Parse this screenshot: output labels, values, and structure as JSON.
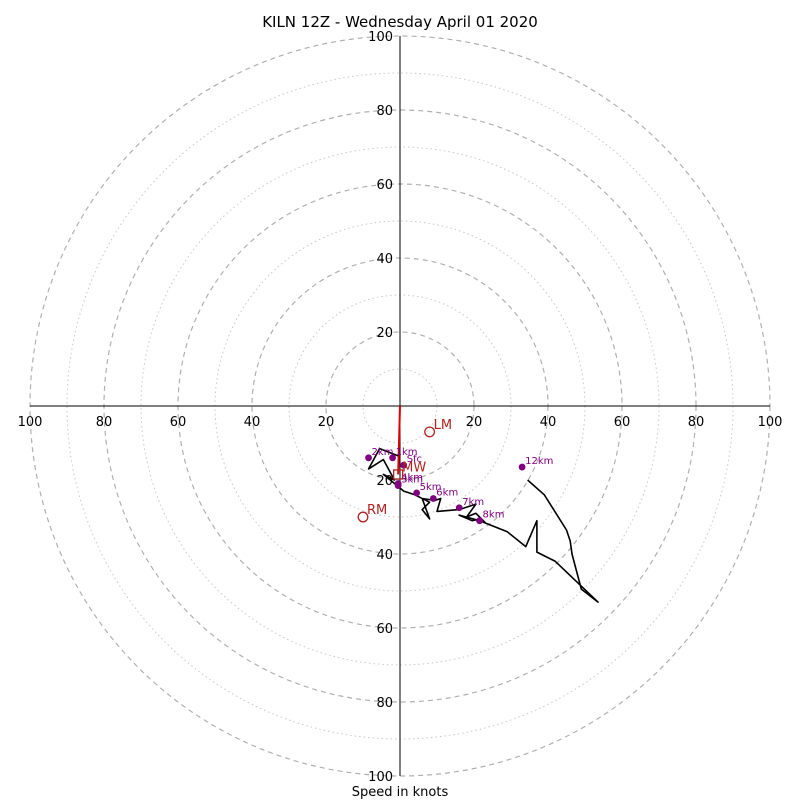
{
  "chart_data": {
    "type": "hodograph",
    "title": "KILN 12Z - Wednesday April 01 2020",
    "xlabel": "Speed in knots",
    "units": "knots",
    "max_speed": 100,
    "ring_major_step": 20,
    "ring_minor_step": 10,
    "tick_labels": {
      "top": [
        "20",
        "40",
        "60",
        "80",
        "100"
      ],
      "bottom": [
        "20",
        "40",
        "60",
        "80",
        "100"
      ],
      "left": [
        "20",
        "40",
        "60",
        "80",
        "100"
      ],
      "right": [
        "20",
        "40",
        "60",
        "80",
        "100"
      ]
    },
    "trace": [
      [
        -0.5,
        -13.5
      ],
      [
        -5.5,
        -11.5
      ],
      [
        -8.5,
        -17
      ],
      [
        -4.5,
        -14.5
      ],
      [
        -1.5,
        -20
      ],
      [
        -4.5,
        -18.5
      ],
      [
        1,
        -23
      ],
      [
        4,
        -24
      ],
      [
        8,
        -26
      ],
      [
        6,
        -28
      ],
      [
        8,
        -30.5
      ],
      [
        6,
        -25
      ],
      [
        9.5,
        -25.5
      ],
      [
        11,
        -25
      ],
      [
        10,
        -28.5
      ],
      [
        16,
        -28
      ],
      [
        20.5,
        -26.5
      ],
      [
        18,
        -30
      ],
      [
        20.5,
        -29
      ],
      [
        23,
        -31.5
      ],
      [
        22,
        -30.5
      ],
      [
        19.5,
        -31
      ],
      [
        16,
        -29.5
      ],
      [
        21.5,
        -31
      ],
      [
        29,
        -34
      ],
      [
        34,
        -38
      ],
      [
        37,
        -31
      ],
      [
        37,
        -39.5
      ],
      [
        42,
        -42
      ],
      [
        53.5,
        -53
      ],
      [
        49,
        -49.5
      ],
      [
        46.5,
        -40
      ],
      [
        46,
        -36.5
      ],
      [
        45,
        -33.5
      ],
      [
        39,
        -24
      ],
      [
        34.5,
        -20
      ]
    ],
    "height_markers": [
      {
        "label": "Sfc",
        "u": 1,
        "v": -16
      },
      {
        "label": "1km",
        "u": -2,
        "v": -14
      },
      {
        "label": "2km",
        "u": -8.5,
        "v": -14
      },
      {
        "label": "3km",
        "u": -0.5,
        "v": -21.5
      },
      {
        "label": "4km",
        "u": -0.5,
        "v": -21
      },
      {
        "label": "5km",
        "u": 4.5,
        "v": -23.5
      },
      {
        "label": "6km",
        "u": 9,
        "v": -25
      },
      {
        "label": "7km",
        "u": 16,
        "v": -27.5
      },
      {
        "label": "8km",
        "u": 21.5,
        "v": -31
      },
      {
        "label": "12km",
        "u": 33,
        "v": -16.5
      }
    ],
    "motion_markers": [
      {
        "label": "LM",
        "u": 8,
        "v": -7,
        "symbol": "circle"
      },
      {
        "label": "RM",
        "u": -10,
        "v": -30,
        "symbol": "circle"
      },
      {
        "label": "MW",
        "u": -0.5,
        "v": -18.5,
        "symbol": "square"
      }
    ],
    "shear_vector": {
      "u_from": 0,
      "v_from": 0,
      "u_to": -0.5,
      "v_to": -18.5
    },
    "colors": {
      "trace": "#000000",
      "height_markers": "#800080",
      "motion": "#b22222",
      "shear": "#e00000",
      "rings_major": "#b0b0b0",
      "rings_minor": "#c8c8c8"
    }
  }
}
